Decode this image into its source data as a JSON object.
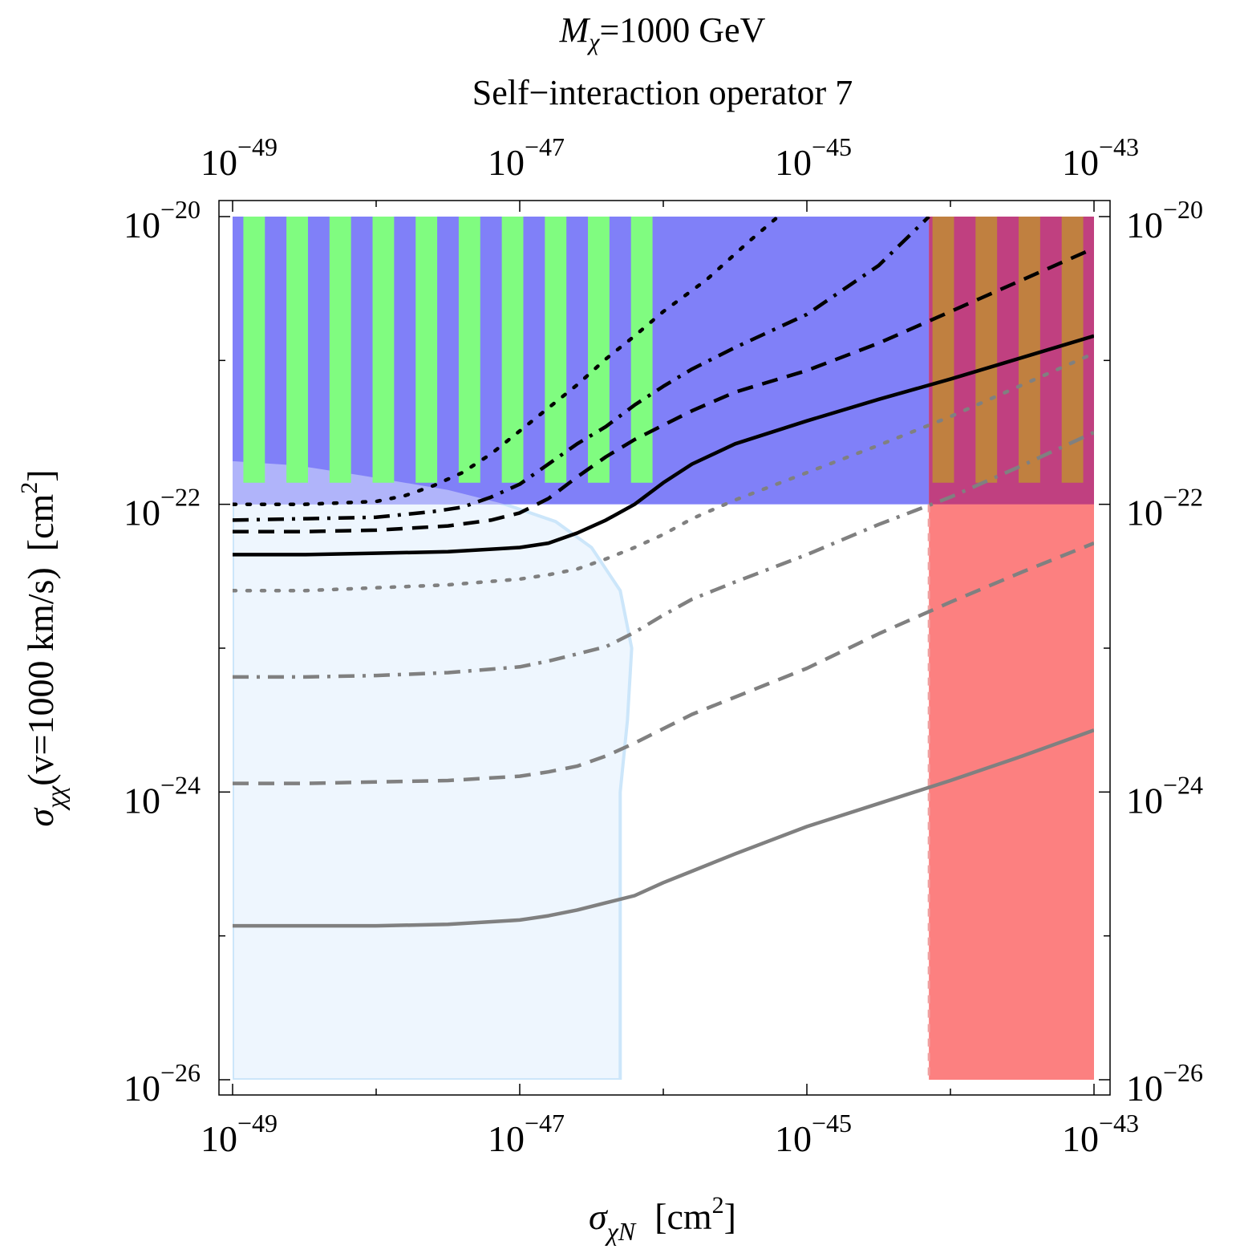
{
  "chart_data": {
    "type": "line",
    "title": {
      "line1": {
        "main": "M",
        "sub": "χ",
        "rest": "=1000 GeV"
      },
      "line2": "Self−interaction operator 7"
    },
    "xlabel": {
      "sigma": "σ",
      "sub": "χN",
      "unit_open": "[cm",
      "unit_sup": "2",
      "unit_close": "]"
    },
    "ylabel": {
      "sigma": "σ",
      "sub": "χχ",
      "text": "(v=1000 km/s)",
      "unit_open": "[cm",
      "unit_sup": "2",
      "unit_close": "]"
    },
    "x_axis": {
      "scale": "log10",
      "range": [
        -49,
        -43
      ],
      "ticks": [
        -49,
        -47,
        -45,
        -43
      ],
      "tick_base": "10",
      "tick_exponents": [
        "−49",
        "−47",
        "−45",
        "−43"
      ]
    },
    "y_axis": {
      "scale": "log10",
      "range": [
        -26,
        -20
      ],
      "ticks": [
        -26,
        -24,
        -22,
        -20
      ],
      "tick_base": "10",
      "tick_exponents": [
        "−26",
        "−24",
        "−22",
        "−20"
      ]
    },
    "colors": {
      "blue_region": "#8080f8",
      "green_stripe": "#80fc80",
      "red_region": "#fc8080",
      "overlap_purple": "#c04080",
      "overlap_orange": "#c08040",
      "lightblue_region": "#eef6fe",
      "lightblue_edge": "#cce6fa",
      "lightblue_overlap": "#b0b4fa",
      "black": "#000000",
      "gray": "#808080"
    },
    "regions": [
      {
        "name": "bullet-cluster-excluded",
        "x_range": [
          -49,
          -43
        ],
        "y_range": [
          -22,
          -20
        ]
      },
      {
        "name": "striped-excluded",
        "x_range": [
          -49,
          -45.85
        ],
        "y_range": [
          -22,
          -20
        ],
        "stripe_period_decades": 0.3
      },
      {
        "name": "direct-detection-excluded",
        "x_range": [
          -44.15,
          -43
        ],
        "y_range": [
          -26,
          -20
        ]
      },
      {
        "name": "light-blue-region",
        "boundary": [
          [
            -49,
            -21.7
          ],
          [
            -48.55,
            -21.73
          ],
          [
            -48.1,
            -21.8
          ],
          [
            -47.5,
            -21.9
          ],
          [
            -47.1,
            -22.0
          ],
          [
            -46.75,
            -22.12
          ],
          [
            -46.5,
            -22.3
          ],
          [
            -46.3,
            -22.6
          ],
          [
            -46.22,
            -23.0
          ],
          [
            -46.25,
            -23.5
          ],
          [
            -46.3,
            -24.0
          ],
          [
            -46.3,
            -25.0
          ],
          [
            -46.3,
            -26
          ],
          [
            -49,
            -26
          ]
        ]
      }
    ],
    "series": [
      {
        "name": "black-solid",
        "color": "black",
        "dash": "solid",
        "x": [
          -49,
          -48.5,
          -48,
          -47.5,
          -47,
          -46.8,
          -46.6,
          -46.4,
          -46.2,
          -46.0,
          -45.8,
          -45.5,
          -45.0,
          -44.5,
          -44.0,
          -43.5,
          -43.0
        ],
        "y": [
          -22.35,
          -22.35,
          -22.34,
          -22.33,
          -22.3,
          -22.27,
          -22.2,
          -22.11,
          -22.0,
          -21.85,
          -21.72,
          -21.58,
          -21.42,
          -21.27,
          -21.13,
          -20.98,
          -20.83
        ]
      },
      {
        "name": "black-dashed",
        "color": "black",
        "dash": "dashed",
        "x": [
          -49,
          -48.5,
          -48,
          -47.5,
          -47.2,
          -47.0,
          -46.8,
          -46.6,
          -46.4,
          -46.2,
          -46.0,
          -45.8,
          -45.5,
          -45.0,
          -44.5,
          -44.0,
          -43.5,
          -43.0
        ],
        "y": [
          -22.19,
          -22.19,
          -22.18,
          -22.15,
          -22.11,
          -22.06,
          -21.96,
          -21.81,
          -21.67,
          -21.55,
          -21.45,
          -21.35,
          -21.22,
          -21.07,
          -20.88,
          -20.66,
          -20.44,
          -20.22
        ]
      },
      {
        "name": "black-dash-dot",
        "color": "black",
        "dash": "dashdot",
        "x": [
          -49,
          -48.5,
          -48,
          -47.6,
          -47.4,
          -47.2,
          -47.0,
          -46.8,
          -46.6,
          -46.4,
          -46.2,
          -46.0,
          -45.8,
          -45.5,
          -45.0,
          -44.5,
          -44.15
        ],
        "y": [
          -22.11,
          -22.1,
          -22.09,
          -22.05,
          -22.02,
          -21.95,
          -21.86,
          -21.72,
          -21.58,
          -21.46,
          -21.31,
          -21.18,
          -21.06,
          -20.91,
          -20.68,
          -20.34,
          -20.0
        ]
      },
      {
        "name": "black-dotted",
        "color": "black",
        "dash": "dotted",
        "x": [
          -49,
          -48.5,
          -48,
          -47.8,
          -47.6,
          -47.4,
          -47.2,
          -47.0,
          -46.8,
          -46.6,
          -46.4,
          -46.2,
          -46.0,
          -45.7,
          -45.4,
          -45.2
        ],
        "y": [
          -22.0,
          -22.0,
          -21.98,
          -21.94,
          -21.87,
          -21.78,
          -21.65,
          -21.49,
          -21.33,
          -21.17,
          -20.99,
          -20.83,
          -20.66,
          -20.44,
          -20.17,
          -20.0
        ]
      },
      {
        "name": "gray-solid",
        "color": "gray",
        "dash": "solid",
        "x": [
          -49,
          -48.5,
          -48,
          -47.5,
          -47.0,
          -46.8,
          -46.6,
          -46.4,
          -46.2,
          -46.0,
          -45.8,
          -45.5,
          -45.0,
          -44.5,
          -44.0,
          -43.5,
          -43.0
        ],
        "y": [
          -24.93,
          -24.93,
          -24.93,
          -24.92,
          -24.89,
          -24.86,
          -24.82,
          -24.77,
          -24.72,
          -24.63,
          -24.55,
          -24.43,
          -24.24,
          -24.08,
          -23.92,
          -23.75,
          -23.57
        ]
      },
      {
        "name": "gray-dashed",
        "color": "gray",
        "dash": "dashed",
        "x": [
          -49,
          -48.5,
          -48,
          -47.5,
          -47.0,
          -46.8,
          -46.6,
          -46.4,
          -46.2,
          -46.0,
          -45.8,
          -45.5,
          -45.0,
          -44.5,
          -44.0,
          -43.5,
          -43.0
        ],
        "y": [
          -23.94,
          -23.94,
          -23.93,
          -23.92,
          -23.89,
          -23.86,
          -23.82,
          -23.75,
          -23.66,
          -23.56,
          -23.46,
          -23.34,
          -23.14,
          -22.9,
          -22.68,
          -22.47,
          -22.27
        ]
      },
      {
        "name": "gray-dash-dot",
        "color": "gray",
        "dash": "dashdot",
        "x": [
          -49,
          -48.5,
          -48,
          -47.5,
          -47.0,
          -46.8,
          -46.6,
          -46.4,
          -46.2,
          -46.0,
          -45.8,
          -45.5,
          -45.0,
          -44.5,
          -44.0,
          -43.5,
          -43.0
        ],
        "y": [
          -23.2,
          -23.2,
          -23.19,
          -23.17,
          -23.13,
          -23.09,
          -23.04,
          -22.99,
          -22.89,
          -22.77,
          -22.66,
          -22.54,
          -22.35,
          -22.14,
          -21.95,
          -21.73,
          -21.5
        ]
      },
      {
        "name": "gray-dotted",
        "color": "gray",
        "dash": "dotted",
        "x": [
          -49,
          -48.5,
          -48,
          -47.5,
          -47.0,
          -46.8,
          -46.6,
          -46.4,
          -46.2,
          -46.0,
          -45.8,
          -45.5,
          -45.0,
          -44.5,
          -44.0,
          -43.5,
          -43.0
        ],
        "y": [
          -22.6,
          -22.6,
          -22.58,
          -22.56,
          -22.52,
          -22.49,
          -22.45,
          -22.38,
          -22.3,
          -22.21,
          -22.1,
          -21.97,
          -21.78,
          -21.59,
          -21.39,
          -21.17,
          -20.95
        ]
      }
    ]
  }
}
